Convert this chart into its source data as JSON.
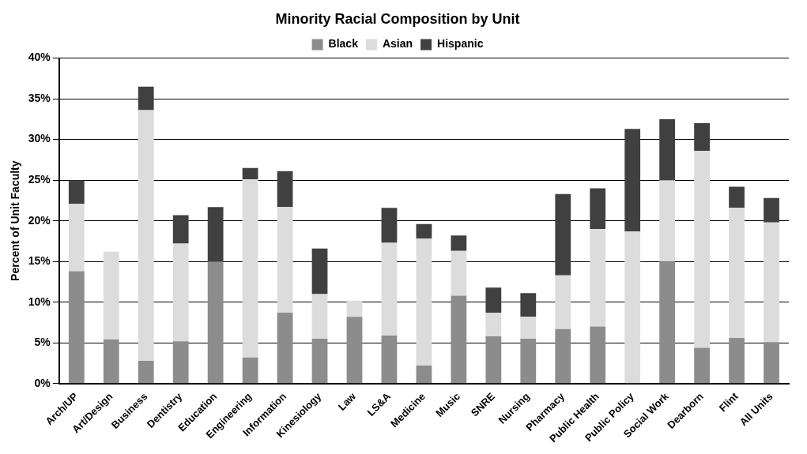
{
  "chart_data": {
    "type": "bar",
    "title": "Minority Racial Composition by Unit",
    "ylabel": "Percent of Unit Faculty",
    "categories": [
      "Arch/UP",
      "Art/Design",
      "Business",
      "Dentistry",
      "Education",
      "Engineering",
      "Information",
      "Kinesiology",
      "Law",
      "LS&A",
      "Medicine",
      "Music",
      "SNRE",
      "Nursing",
      "Pharmacy",
      "Public Health",
      "Public Policy",
      "Social Work",
      "Dearborn",
      "Flint",
      "All Units"
    ],
    "stacked": true,
    "series": [
      {
        "name": "Black",
        "color": "#8c8c8c",
        "values": [
          13.8,
          5.4,
          2.8,
          5.2,
          15.0,
          3.2,
          8.7,
          5.5,
          8.2,
          5.9,
          2.2,
          10.8,
          5.8,
          5.5,
          6.7,
          7.0,
          0,
          15.0,
          4.4,
          5.6,
          5.1
        ]
      },
      {
        "name": "Asian",
        "color": "#dcdcdc",
        "values": [
          8.3,
          10.8,
          30.8,
          12.0,
          0,
          21.9,
          13.0,
          5.5,
          2.0,
          11.4,
          15.6,
          5.5,
          2.9,
          2.7,
          6.6,
          12.0,
          18.7,
          10.0,
          24.2,
          16.0,
          14.7
        ]
      },
      {
        "name": "Hispanic",
        "color": "#404040",
        "values": [
          2.9,
          0,
          2.9,
          3.5,
          6.7,
          1.4,
          4.4,
          5.6,
          0,
          4.3,
          1.8,
          1.9,
          3.1,
          2.9,
          10.0,
          5.0,
          12.6,
          7.5,
          3.4,
          2.6,
          3.0
        ]
      }
    ],
    "ylim": [
      0,
      40
    ],
    "yticks": [
      {
        "value": 0,
        "label": "0%"
      },
      {
        "value": 5,
        "label": "5%"
      },
      {
        "value": 10,
        "label": "10%"
      },
      {
        "value": 15,
        "label": "15%"
      },
      {
        "value": 20,
        "label": "20%"
      },
      {
        "value": 25,
        "label": "25%"
      },
      {
        "value": 30,
        "label": "30%"
      },
      {
        "value": 35,
        "label": "35%"
      },
      {
        "value": 40,
        "label": "40%"
      }
    ],
    "grid": "y",
    "legend": "top"
  }
}
